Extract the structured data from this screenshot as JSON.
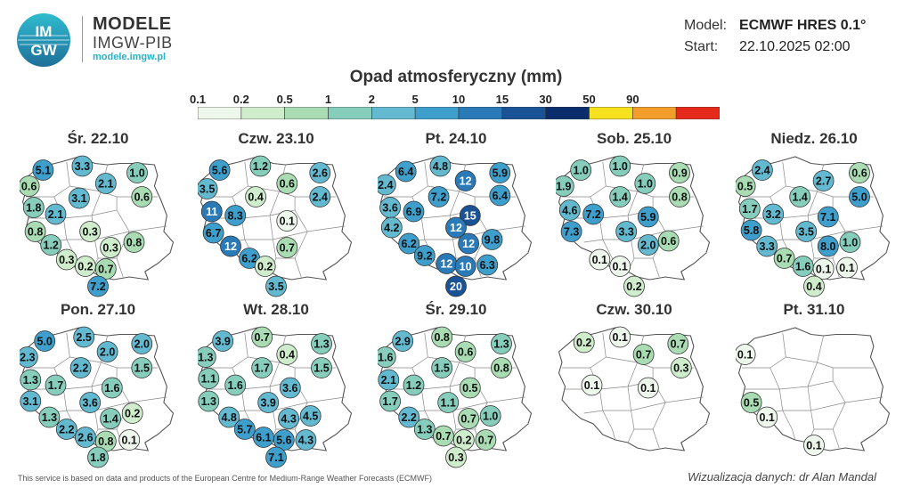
{
  "brand": {
    "title": "MODELE",
    "subtitle": "IMGW-PIB",
    "url": "modele.imgw.pl",
    "logo_text_top": "IM",
    "logo_text_bottom": "GW"
  },
  "meta": {
    "model_label": "Model:",
    "model_value": "ECMWF HRES 0.1°",
    "start_label": "Start:",
    "start_value": "22.10.2025 02:00"
  },
  "title": "Opad atmosferyczny (mm)",
  "scale": {
    "ticks": [
      "0.1",
      "0.2",
      "0.5",
      "1",
      "2",
      "5",
      "10",
      "15",
      "30",
      "50",
      "90"
    ],
    "colors": [
      "#eef7ec",
      "#cfeccc",
      "#a9dcb3",
      "#86cdbc",
      "#63b9cf",
      "#3f9fcc",
      "#2a7ab8",
      "#1a5296",
      "#0b2d6b",
      "#f5e11e",
      "#f39d2a",
      "#e52a1c"
    ]
  },
  "days": [
    {
      "label": "Śr. 22.10",
      "points": [
        {
          "v": "5.1",
          "x": 0.15,
          "y": 0.1
        },
        {
          "v": "3.3",
          "x": 0.4,
          "y": 0.07
        },
        {
          "v": "1.0",
          "x": 0.75,
          "y": 0.12
        },
        {
          "v": "0.6",
          "x": 0.06,
          "y": 0.22
        },
        {
          "v": "2.1",
          "x": 0.55,
          "y": 0.2
        },
        {
          "v": "0.6",
          "x": 0.78,
          "y": 0.3
        },
        {
          "v": "3.1",
          "x": 0.38,
          "y": 0.31
        },
        {
          "v": "1.8",
          "x": 0.09,
          "y": 0.38
        },
        {
          "v": "2.1",
          "x": 0.23,
          "y": 0.43
        },
        {
          "v": "0.8",
          "x": 0.1,
          "y": 0.56
        },
        {
          "v": "0.3",
          "x": 0.45,
          "y": 0.56
        },
        {
          "v": "0.8",
          "x": 0.73,
          "y": 0.64
        },
        {
          "v": "1.2",
          "x": 0.2,
          "y": 0.66
        },
        {
          "v": "0.3",
          "x": 0.58,
          "y": 0.68
        },
        {
          "v": "0.3",
          "x": 0.3,
          "y": 0.77
        },
        {
          "v": "0.2",
          "x": 0.42,
          "y": 0.82
        },
        {
          "v": "0.7",
          "x": 0.55,
          "y": 0.84
        },
        {
          "v": "7.2",
          "x": 0.5,
          "y": 1.0
        }
      ]
    },
    {
      "label": "Czw. 23.10",
      "points": [
        {
          "v": "5.6",
          "x": 0.14,
          "y": 0.1
        },
        {
          "v": "1.2",
          "x": 0.4,
          "y": 0.07
        },
        {
          "v": "2.6",
          "x": 0.78,
          "y": 0.12
        },
        {
          "v": "0.6",
          "x": 0.57,
          "y": 0.2
        },
        {
          "v": "3.5",
          "x": 0.06,
          "y": 0.24
        },
        {
          "v": "2.4",
          "x": 0.78,
          "y": 0.3
        },
        {
          "v": "0.4",
          "x": 0.37,
          "y": 0.3
        },
        {
          "v": "11",
          "x": 0.09,
          "y": 0.41
        },
        {
          "v": "8.3",
          "x": 0.24,
          "y": 0.44
        },
        {
          "v": "0.1",
          "x": 0.57,
          "y": 0.48
        },
        {
          "v": "6.7",
          "x": 0.1,
          "y": 0.57
        },
        {
          "v": "12",
          "x": 0.21,
          "y": 0.67
        },
        {
          "v": "0.7",
          "x": 0.57,
          "y": 0.68
        },
        {
          "v": "6.2",
          "x": 0.33,
          "y": 0.76
        },
        {
          "v": "0.2",
          "x": 0.43,
          "y": 0.82
        },
        {
          "v": "3.5",
          "x": 0.5,
          "y": 1.0
        }
      ]
    },
    {
      "label": "Pt. 24.10",
      "points": [
        {
          "v": "6.4",
          "x": 0.18,
          "y": 0.11
        },
        {
          "v": "4.8",
          "x": 0.4,
          "y": 0.07
        },
        {
          "v": "5.9",
          "x": 0.78,
          "y": 0.12
        },
        {
          "v": "12",
          "x": 0.56,
          "y": 0.18
        },
        {
          "v": "2.4",
          "x": 0.05,
          "y": 0.21
        },
        {
          "v": "6.4",
          "x": 0.78,
          "y": 0.29
        },
        {
          "v": "7.2",
          "x": 0.39,
          "y": 0.3
        },
        {
          "v": "3.6",
          "x": 0.08,
          "y": 0.38
        },
        {
          "v": "6.9",
          "x": 0.23,
          "y": 0.41
        },
        {
          "v": "15",
          "x": 0.59,
          "y": 0.44
        },
        {
          "v": "4.2",
          "x": 0.09,
          "y": 0.53
        },
        {
          "v": "12",
          "x": 0.5,
          "y": 0.53
        },
        {
          "v": "9.8",
          "x": 0.73,
          "y": 0.62
        },
        {
          "v": "6.2",
          "x": 0.2,
          "y": 0.65
        },
        {
          "v": "12",
          "x": 0.58,
          "y": 0.65
        },
        {
          "v": "9.2",
          "x": 0.3,
          "y": 0.74
        },
        {
          "v": "12",
          "x": 0.44,
          "y": 0.8
        },
        {
          "v": "10",
          "x": 0.56,
          "y": 0.82
        },
        {
          "v": "6.3",
          "x": 0.7,
          "y": 0.81
        },
        {
          "v": "20",
          "x": 0.5,
          "y": 0.98
        }
      ]
    },
    {
      "label": "Sob. 25.10",
      "points": [
        {
          "v": "1.0",
          "x": 0.16,
          "y": 0.1
        },
        {
          "v": "1.0",
          "x": 0.41,
          "y": 0.07
        },
        {
          "v": "0.9",
          "x": 0.79,
          "y": 0.12
        },
        {
          "v": "1.9",
          "x": 0.05,
          "y": 0.22
        },
        {
          "v": "1.0",
          "x": 0.57,
          "y": 0.2
        },
        {
          "v": "0.8",
          "x": 0.79,
          "y": 0.3
        },
        {
          "v": "1.4",
          "x": 0.41,
          "y": 0.3
        },
        {
          "v": "4.6",
          "x": 0.09,
          "y": 0.4
        },
        {
          "v": "7.2",
          "x": 0.24,
          "y": 0.43
        },
        {
          "v": "5.9",
          "x": 0.59,
          "y": 0.45
        },
        {
          "v": "7.3",
          "x": 0.1,
          "y": 0.56
        },
        {
          "v": "3.3",
          "x": 0.45,
          "y": 0.56
        },
        {
          "v": "2.0",
          "x": 0.59,
          "y": 0.66
        },
        {
          "v": "0.6",
          "x": 0.72,
          "y": 0.63
        },
        {
          "v": "0.1",
          "x": 0.28,
          "y": 0.77
        },
        {
          "v": "0.1",
          "x": 0.41,
          "y": 0.82
        },
        {
          "v": "0.2",
          "x": 0.5,
          "y": 0.99
        }
      ]
    },
    {
      "label": "Niedz. 26.10",
      "points": [
        {
          "v": "2.4",
          "x": 0.17,
          "y": 0.1
        },
        {
          "v": "0.6",
          "x": 0.79,
          "y": 0.12
        },
        {
          "v": "2.7",
          "x": 0.56,
          "y": 0.18
        },
        {
          "v": "0.5",
          "x": 0.06,
          "y": 0.22
        },
        {
          "v": "5.0",
          "x": 0.79,
          "y": 0.3
        },
        {
          "v": "1.4",
          "x": 0.41,
          "y": 0.3
        },
        {
          "v": "1.7",
          "x": 0.09,
          "y": 0.39
        },
        {
          "v": "3.2",
          "x": 0.24,
          "y": 0.43
        },
        {
          "v": "7.1",
          "x": 0.59,
          "y": 0.45
        },
        {
          "v": "5.8",
          "x": 0.1,
          "y": 0.55
        },
        {
          "v": "3.5",
          "x": 0.45,
          "y": 0.56
        },
        {
          "v": "3.3",
          "x": 0.2,
          "y": 0.67
        },
        {
          "v": "8.0",
          "x": 0.59,
          "y": 0.67
        },
        {
          "v": "1.0",
          "x": 0.73,
          "y": 0.64
        },
        {
          "v": "0.7",
          "x": 0.31,
          "y": 0.76
        },
        {
          "v": "1.6",
          "x": 0.43,
          "y": 0.82
        },
        {
          "v": "0.1",
          "x": 0.56,
          "y": 0.84
        },
        {
          "v": "0.1",
          "x": 0.71,
          "y": 0.83
        },
        {
          "v": "0.4",
          "x": 0.5,
          "y": 0.98
        }
      ]
    },
    {
      "label": "Pon. 27.10",
      "points": [
        {
          "v": "5.0",
          "x": 0.16,
          "y": 0.1
        },
        {
          "v": "2.5",
          "x": 0.41,
          "y": 0.07
        },
        {
          "v": "2.0",
          "x": 0.78,
          "y": 0.12
        },
        {
          "v": "2.0",
          "x": 0.56,
          "y": 0.18
        },
        {
          "v": "2.3",
          "x": 0.05,
          "y": 0.22
        },
        {
          "v": "1.5",
          "x": 0.78,
          "y": 0.3
        },
        {
          "v": "2.2",
          "x": 0.39,
          "y": 0.3
        },
        {
          "v": "1.3",
          "x": 0.07,
          "y": 0.39
        },
        {
          "v": "1.7",
          "x": 0.23,
          "y": 0.43
        },
        {
          "v": "1.6",
          "x": 0.59,
          "y": 0.45
        },
        {
          "v": "3.1",
          "x": 0.07,
          "y": 0.55
        },
        {
          "v": "3.6",
          "x": 0.45,
          "y": 0.56
        },
        {
          "v": "0.2",
          "x": 0.72,
          "y": 0.64
        },
        {
          "v": "1.3",
          "x": 0.19,
          "y": 0.67
        },
        {
          "v": "1.4",
          "x": 0.58,
          "y": 0.68
        },
        {
          "v": "2.2",
          "x": 0.3,
          "y": 0.76
        },
        {
          "v": "2.6",
          "x": 0.42,
          "y": 0.82
        },
        {
          "v": "0.8",
          "x": 0.55,
          "y": 0.85
        },
        {
          "v": "0.1",
          "x": 0.7,
          "y": 0.84
        },
        {
          "v": "1.8",
          "x": 0.5,
          "y": 1.0
        }
      ]
    },
    {
      "label": "Wt. 28.10",
      "points": [
        {
          "v": "3.9",
          "x": 0.16,
          "y": 0.1
        },
        {
          "v": "0.7",
          "x": 0.41,
          "y": 0.07
        },
        {
          "v": "1.3",
          "x": 0.79,
          "y": 0.12
        },
        {
          "v": "0.4",
          "x": 0.57,
          "y": 0.2
        },
        {
          "v": "1.3",
          "x": 0.05,
          "y": 0.22
        },
        {
          "v": "1.5",
          "x": 0.79,
          "y": 0.3
        },
        {
          "v": "1.7",
          "x": 0.41,
          "y": 0.3
        },
        {
          "v": "1.1",
          "x": 0.07,
          "y": 0.38
        },
        {
          "v": "1.6",
          "x": 0.24,
          "y": 0.43
        },
        {
          "v": "3.6",
          "x": 0.59,
          "y": 0.45
        },
        {
          "v": "1.3",
          "x": 0.07,
          "y": 0.55
        },
        {
          "v": "3.9",
          "x": 0.45,
          "y": 0.56
        },
        {
          "v": "4.3",
          "x": 0.58,
          "y": 0.68
        },
        {
          "v": "4.5",
          "x": 0.72,
          "y": 0.66
        },
        {
          "v": "4.8",
          "x": 0.2,
          "y": 0.67
        },
        {
          "v": "5.7",
          "x": 0.3,
          "y": 0.76
        },
        {
          "v": "6.1",
          "x": 0.42,
          "y": 0.82
        },
        {
          "v": "5.6",
          "x": 0.55,
          "y": 0.84
        },
        {
          "v": "4.3",
          "x": 0.69,
          "y": 0.84
        },
        {
          "v": "7.1",
          "x": 0.5,
          "y": 1.0
        }
      ]
    },
    {
      "label": "Śr. 29.10",
      "points": [
        {
          "v": "2.9",
          "x": 0.16,
          "y": 0.1
        },
        {
          "v": "0.8",
          "x": 0.41,
          "y": 0.07
        },
        {
          "v": "1.3",
          "x": 0.79,
          "y": 0.12
        },
        {
          "v": "0.6",
          "x": 0.56,
          "y": 0.18
        },
        {
          "v": "1.6",
          "x": 0.05,
          "y": 0.22
        },
        {
          "v": "0.8",
          "x": 0.79,
          "y": 0.3
        },
        {
          "v": "1.5",
          "x": 0.41,
          "y": 0.3
        },
        {
          "v": "2.1",
          "x": 0.07,
          "y": 0.39
        },
        {
          "v": "1.2",
          "x": 0.23,
          "y": 0.43
        },
        {
          "v": "0.5",
          "x": 0.59,
          "y": 0.45
        },
        {
          "v": "1.7",
          "x": 0.08,
          "y": 0.55
        },
        {
          "v": "1.1",
          "x": 0.45,
          "y": 0.56
        },
        {
          "v": "0.7",
          "x": 0.58,
          "y": 0.68
        },
        {
          "v": "1.0",
          "x": 0.72,
          "y": 0.66
        },
        {
          "v": "2.2",
          "x": 0.2,
          "y": 0.67
        },
        {
          "v": "1.3",
          "x": 0.3,
          "y": 0.76
        },
        {
          "v": "0.7",
          "x": 0.42,
          "y": 0.81
        },
        {
          "v": "0.2",
          "x": 0.55,
          "y": 0.84
        },
        {
          "v": "0.7",
          "x": 0.69,
          "y": 0.84
        },
        {
          "v": "0.3",
          "x": 0.5,
          "y": 0.99
        }
      ]
    },
    {
      "label": "Czw. 30.10",
      "points": [
        {
          "v": "0.2",
          "x": 0.18,
          "y": 0.11
        },
        {
          "v": "0.1",
          "x": 0.41,
          "y": 0.07
        },
        {
          "v": "0.7",
          "x": 0.78,
          "y": 0.12
        },
        {
          "v": "0.7",
          "x": 0.56,
          "y": 0.2
        },
        {
          "v": "0.3",
          "x": 0.8,
          "y": 0.3
        },
        {
          "v": "0.1",
          "x": 0.23,
          "y": 0.43
        },
        {
          "v": "0.1",
          "x": 0.59,
          "y": 0.45
        }
      ]
    },
    {
      "label": "Pt. 31.10",
      "points": [
        {
          "v": "0.1",
          "x": 0.06,
          "y": 0.2
        },
        {
          "v": "0.5",
          "x": 0.1,
          "y": 0.56
        },
        {
          "v": "0.1",
          "x": 0.2,
          "y": 0.67
        },
        {
          "v": "0.1",
          "x": 0.5,
          "y": 0.88
        }
      ]
    }
  ],
  "footer": {
    "left": "This service is based on data and products of the European Centre for Medium-Range Weather Forecasts (ECMWF)",
    "right": "Wizualizacja danych: dr Alan Mandal"
  }
}
